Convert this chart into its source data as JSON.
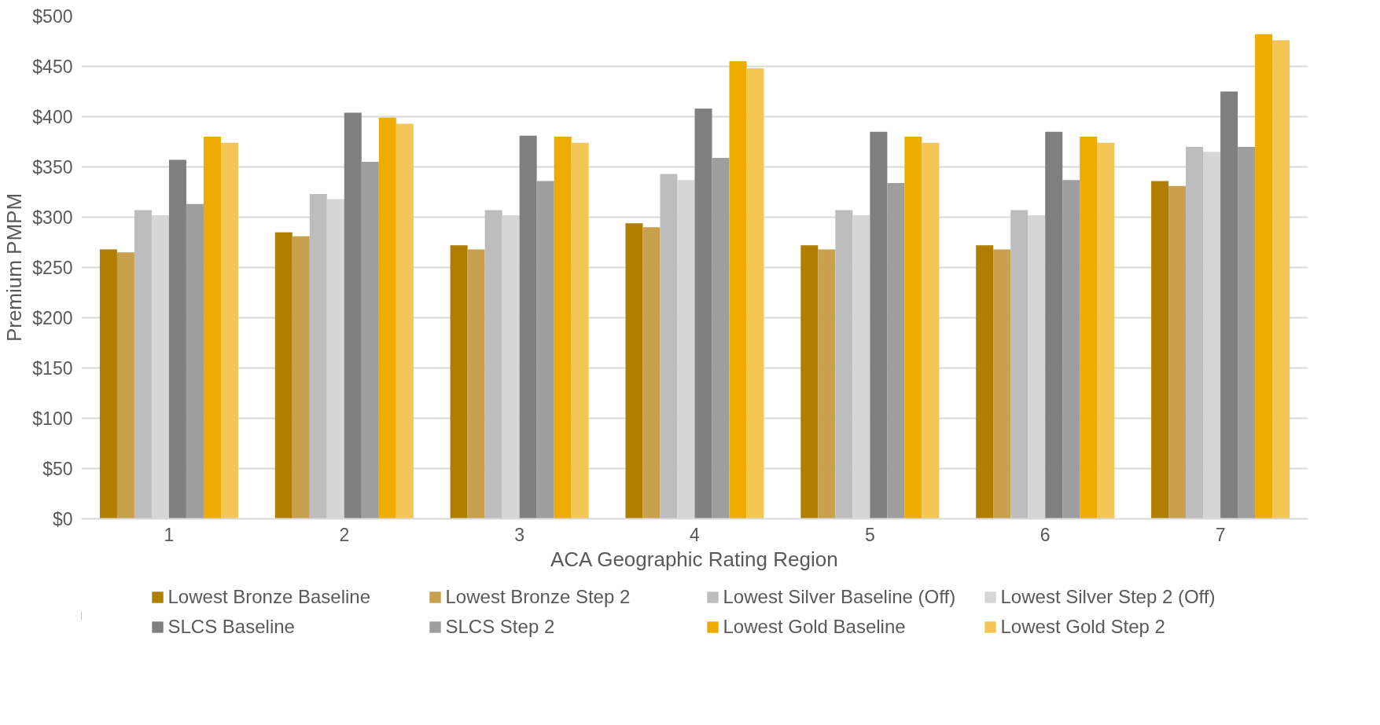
{
  "chart_data": {
    "type": "bar",
    "xlabel": "ACA Geographic Rating Region",
    "ylabel": "Premium PMPM",
    "categories": [
      "1",
      "2",
      "3",
      "4",
      "5",
      "6",
      "7"
    ],
    "series": [
      {
        "name": "Lowest Bronze Baseline",
        "color": "#b07e00",
        "values": [
          268,
          285,
          272,
          294,
          272,
          272,
          336
        ]
      },
      {
        "name": "Lowest Bronze Step 2",
        "color": "#c9a04d",
        "values": [
          265,
          281,
          268,
          290,
          268,
          268,
          331
        ]
      },
      {
        "name": "Lowest Silver Baseline (Off)",
        "color": "#bdbdbd",
        "values": [
          307,
          323,
          307,
          343,
          307,
          307,
          370
        ]
      },
      {
        "name": "Lowest Silver Step 2 (Off)",
        "color": "#d6d6d6",
        "values": [
          302,
          318,
          302,
          337,
          302,
          302,
          365
        ]
      },
      {
        "name": "SLCS Baseline",
        "color": "#7f7f7f",
        "values": [
          357,
          404,
          381,
          408,
          385,
          385,
          425
        ]
      },
      {
        "name": "SLCS Step 2",
        "color": "#9e9e9e",
        "values": [
          313,
          355,
          336,
          359,
          334,
          337,
          370
        ]
      },
      {
        "name": "Lowest Gold Baseline",
        "color": "#eeab00",
        "values": [
          380,
          399,
          380,
          455,
          380,
          380,
          482
        ]
      },
      {
        "name": "Lowest Gold Step 2",
        "color": "#f4c655",
        "values": [
          374,
          393,
          374,
          448,
          374,
          374,
          476
        ]
      }
    ],
    "ylim": [
      0,
      500
    ],
    "yticks": [
      {
        "value": 0,
        "label": "$0"
      },
      {
        "value": 50,
        "label": "$50"
      },
      {
        "value": 100,
        "label": "$100"
      },
      {
        "value": 150,
        "label": "$150"
      },
      {
        "value": 200,
        "label": "$200"
      },
      {
        "value": 250,
        "label": "$250"
      },
      {
        "value": 300,
        "label": "$300"
      },
      {
        "value": 350,
        "label": "$350"
      },
      {
        "value": 400,
        "label": "$400"
      },
      {
        "value": 450,
        "label": "$450"
      },
      {
        "value": 500,
        "label": "$500"
      }
    ],
    "grid": "y",
    "legend": "bottom"
  }
}
